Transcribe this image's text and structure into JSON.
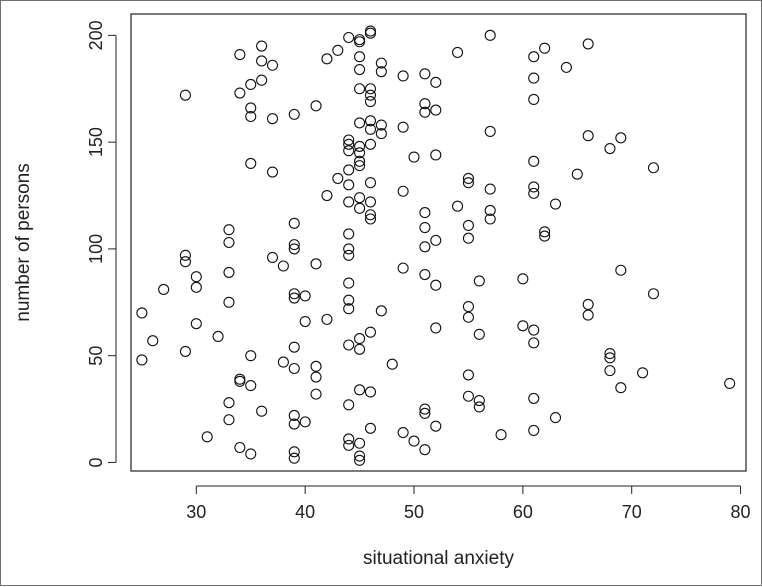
{
  "chart_data": {
    "type": "scatter",
    "title": "",
    "xlabel": "situational anxiety",
    "ylabel": "number of persons",
    "xlim": [
      24,
      80.5
    ],
    "ylim": [
      -4,
      210
    ],
    "x_ticks": [
      30,
      40,
      50,
      60,
      70,
      80
    ],
    "y_ticks": [
      0,
      50,
      100,
      150,
      200
    ],
    "grid": false,
    "marker": "open-circle",
    "points": [
      [
        25,
        70
      ],
      [
        25,
        48
      ],
      [
        26,
        57
      ],
      [
        27,
        81
      ],
      [
        29,
        172
      ],
      [
        29,
        97
      ],
      [
        29,
        94
      ],
      [
        29,
        52
      ],
      [
        30,
        87
      ],
      [
        30,
        82
      ],
      [
        30,
        65
      ],
      [
        31,
        12
      ],
      [
        32,
        59
      ],
      [
        33,
        109
      ],
      [
        33,
        103
      ],
      [
        33,
        89
      ],
      [
        33,
        75
      ],
      [
        33,
        28
      ],
      [
        33,
        20
      ],
      [
        34,
        191
      ],
      [
        34,
        173
      ],
      [
        34,
        39
      ],
      [
        34,
        38
      ],
      [
        34,
        7
      ],
      [
        35,
        177
      ],
      [
        35,
        166
      ],
      [
        35,
        162
      ],
      [
        35,
        140
      ],
      [
        35,
        50
      ],
      [
        35,
        36
      ],
      [
        35,
        4
      ],
      [
        36,
        195
      ],
      [
        36,
        188
      ],
      [
        36,
        179
      ],
      [
        36,
        24
      ],
      [
        37,
        186
      ],
      [
        37,
        161
      ],
      [
        37,
        136
      ],
      [
        37,
        96
      ],
      [
        38,
        92
      ],
      [
        38,
        47
      ],
      [
        39,
        163
      ],
      [
        39,
        112
      ],
      [
        39,
        102
      ],
      [
        39,
        100
      ],
      [
        39,
        79
      ],
      [
        39,
        77
      ],
      [
        39,
        54
      ],
      [
        39,
        44
      ],
      [
        39,
        22
      ],
      [
        39,
        18
      ],
      [
        39,
        5
      ],
      [
        39,
        2
      ],
      [
        40,
        78
      ],
      [
        40,
        66
      ],
      [
        40,
        19
      ],
      [
        41,
        167
      ],
      [
        41,
        93
      ],
      [
        41,
        45
      ],
      [
        41,
        40
      ],
      [
        41,
        32
      ],
      [
        42,
        189
      ],
      [
        42,
        125
      ],
      [
        42,
        67
      ],
      [
        43,
        193
      ],
      [
        43,
        133
      ],
      [
        44,
        199
      ],
      [
        44,
        151
      ],
      [
        44,
        149
      ],
      [
        44,
        146
      ],
      [
        44,
        137
      ],
      [
        44,
        130
      ],
      [
        44,
        122
      ],
      [
        44,
        107
      ],
      [
        44,
        100
      ],
      [
        44,
        97
      ],
      [
        44,
        84
      ],
      [
        44,
        76
      ],
      [
        44,
        72
      ],
      [
        44,
        55
      ],
      [
        44,
        27
      ],
      [
        44,
        11
      ],
      [
        44,
        8
      ],
      [
        45,
        198
      ],
      [
        45,
        197
      ],
      [
        45,
        190
      ],
      [
        45,
        184
      ],
      [
        45,
        175
      ],
      [
        45,
        159
      ],
      [
        45,
        148
      ],
      [
        45,
        145
      ],
      [
        45,
        141
      ],
      [
        45,
        139
      ],
      [
        45,
        124
      ],
      [
        45,
        119
      ],
      [
        45,
        58
      ],
      [
        45,
        53
      ],
      [
        45,
        34
      ],
      [
        45,
        9
      ],
      [
        45,
        3
      ],
      [
        45,
        1
      ],
      [
        46,
        202
      ],
      [
        46,
        201
      ],
      [
        46,
        175
      ],
      [
        46,
        172
      ],
      [
        46,
        169
      ],
      [
        46,
        160
      ],
      [
        46,
        156
      ],
      [
        46,
        149
      ],
      [
        46,
        131
      ],
      [
        46,
        122
      ],
      [
        46,
        116
      ],
      [
        46,
        114
      ],
      [
        46,
        61
      ],
      [
        46,
        33
      ],
      [
        46,
        16
      ],
      [
        47,
        187
      ],
      [
        47,
        183
      ],
      [
        47,
        158
      ],
      [
        47,
        154
      ],
      [
        47,
        71
      ],
      [
        48,
        46
      ],
      [
        49,
        181
      ],
      [
        49,
        157
      ],
      [
        49,
        127
      ],
      [
        49,
        91
      ],
      [
        49,
        14
      ],
      [
        50,
        143
      ],
      [
        50,
        10
      ],
      [
        51,
        182
      ],
      [
        51,
        168
      ],
      [
        51,
        164
      ],
      [
        51,
        117
      ],
      [
        51,
        110
      ],
      [
        51,
        101
      ],
      [
        51,
        88
      ],
      [
        51,
        25
      ],
      [
        51,
        23
      ],
      [
        51,
        6
      ],
      [
        52,
        178
      ],
      [
        52,
        165
      ],
      [
        52,
        144
      ],
      [
        52,
        104
      ],
      [
        52,
        83
      ],
      [
        52,
        63
      ],
      [
        52,
        17
      ],
      [
        54,
        192
      ],
      [
        54,
        120
      ],
      [
        55,
        133
      ],
      [
        55,
        131
      ],
      [
        55,
        111
      ],
      [
        55,
        105
      ],
      [
        55,
        73
      ],
      [
        55,
        68
      ],
      [
        55,
        41
      ],
      [
        55,
        31
      ],
      [
        56,
        85
      ],
      [
        56,
        60
      ],
      [
        56,
        29
      ],
      [
        56,
        26
      ],
      [
        57,
        200
      ],
      [
        57,
        155
      ],
      [
        57,
        128
      ],
      [
        57,
        118
      ],
      [
        57,
        114
      ],
      [
        58,
        13
      ],
      [
        60,
        86
      ],
      [
        60,
        64
      ],
      [
        61,
        190
      ],
      [
        61,
        180
      ],
      [
        61,
        170
      ],
      [
        61,
        141
      ],
      [
        61,
        129
      ],
      [
        61,
        126
      ],
      [
        61,
        62
      ],
      [
        61,
        56
      ],
      [
        61,
        30
      ],
      [
        61,
        15
      ],
      [
        62,
        194
      ],
      [
        62,
        108
      ],
      [
        62,
        106
      ],
      [
        63,
        121
      ],
      [
        63,
        21
      ],
      [
        64,
        185
      ],
      [
        65,
        135
      ],
      [
        66,
        196
      ],
      [
        66,
        153
      ],
      [
        66,
        74
      ],
      [
        66,
        69
      ],
      [
        68,
        147
      ],
      [
        68,
        51
      ],
      [
        68,
        49
      ],
      [
        68,
        43
      ],
      [
        69,
        152
      ],
      [
        69,
        90
      ],
      [
        69,
        35
      ],
      [
        71,
        42
      ],
      [
        72,
        138
      ],
      [
        72,
        79
      ],
      [
        79,
        37
      ]
    ]
  }
}
